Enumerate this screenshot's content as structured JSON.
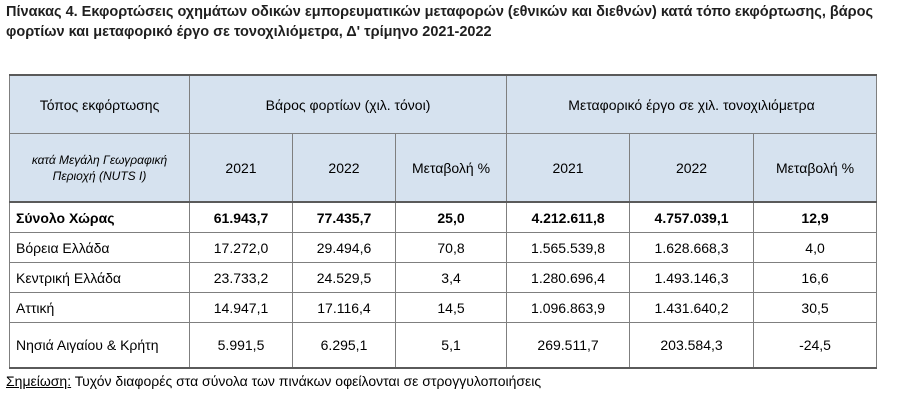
{
  "title": "Πίνακας 4. Εκφορτώσεις οχημάτων οδικών εμπορευματικών μεταφορών (εθνικών και διεθνών) κατά τόπο εκφόρτωσης, βάρος φορτίων και μεταφορικό έργο σε τονοχιλιόμετρα, Δ' τρίμηνο 2021-2022",
  "table": {
    "header_row1": {
      "col0": "Τόπος εκφόρτωσης",
      "group1": "Βάρος φορτίων (χιλ. τόνοι)",
      "group2": "Μεταφορικό έργο σε χιλ. τονοχιλιόμετρα"
    },
    "header_row2": {
      "col0": "κατά Μεγάλη Γεωγραφική Περιοχή (NUTS I)",
      "cols": [
        "2021",
        "2022",
        "Μεταβολή %",
        "2021",
        "2022",
        "Μεταβολή %"
      ]
    },
    "rows": [
      {
        "region": "Σύνολο Χώρας",
        "values": [
          "61.943,7",
          "77.435,7",
          "25,0",
          "4.212.611,8",
          "4.757.039,1",
          "12,9"
        ]
      },
      {
        "region": "Βόρεια Ελλάδα",
        "values": [
          "17.272,0",
          "29.494,6",
          "70,8",
          "1.565.539,8",
          "1.628.668,3",
          "4,0"
        ]
      },
      {
        "region": "Κεντρική Ελλάδα",
        "values": [
          "23.733,2",
          "24.529,5",
          "3,4",
          "1.280.696,4",
          "1.493.146,3",
          "16,6"
        ]
      },
      {
        "region": "Αττική",
        "values": [
          "14.947,1",
          "17.116,4",
          "14,5",
          "1.096.863,9",
          "1.431.640,2",
          "30,5"
        ]
      },
      {
        "region": "Νησιά Αιγαίου & Κρήτη",
        "values": [
          "5.991,5",
          "6.295,1",
          "5,1",
          "269.511,7",
          "203.584,3",
          "-24,5"
        ]
      }
    ]
  },
  "note": {
    "label": "Σημείωση:",
    "text": " Τυχόν διαφορές στα σύνολα των πινάκων οφείλονται σε στρογγυλοποιήσεις"
  }
}
